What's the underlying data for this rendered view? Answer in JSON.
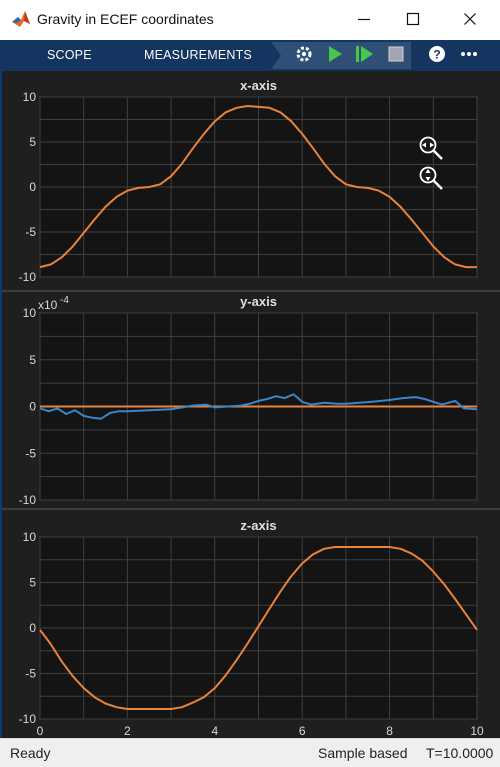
{
  "window": {
    "title": "Gravity in ECEF coordinates"
  },
  "toolstrip": {
    "tabs": [
      {
        "label": "SCOPE"
      },
      {
        "label": "MEASUREMENTS"
      }
    ]
  },
  "status": {
    "state": "Ready",
    "mode": "Sample based",
    "time": "T=10.0000"
  },
  "colors": {
    "titlebar": "#ffffff",
    "toolstrip": "#13355f",
    "scope_bg": "#1f1f1f",
    "axes_bg": "#141414",
    "grid": "#3f3f3f",
    "orange": "#e8833a",
    "blue": "#3b86c8"
  },
  "chart_data": [
    {
      "type": "line",
      "title": "x-axis",
      "xlim": [
        0,
        10
      ],
      "ylim": [
        -10,
        10
      ],
      "grid": true,
      "xticks": [],
      "yticks": [
        "10",
        "5",
        "0",
        "-5",
        "-10"
      ],
      "series": [
        {
          "color": "#e8833a",
          "x": [
            0,
            0.25,
            0.5,
            0.75,
            1.0,
            1.25,
            1.5,
            1.75,
            2.0,
            2.25,
            2.5,
            2.75,
            3.0,
            3.25,
            3.5,
            3.75,
            4.0,
            4.25,
            4.5,
            4.75,
            5.0,
            5.25,
            5.5,
            5.75,
            6.0,
            6.25,
            6.5,
            6.75,
            7.0,
            7.25,
            7.5,
            7.75,
            8.0,
            8.25,
            8.5,
            8.75,
            9.0,
            9.25,
            9.5,
            9.75,
            10.0
          ],
          "y": [
            -8.9,
            -8.6,
            -7.8,
            -6.6,
            -5.1,
            -3.6,
            -2.2,
            -1.1,
            -0.4,
            -0.1,
            0.0,
            0.3,
            1.2,
            2.6,
            4.3,
            5.9,
            7.3,
            8.3,
            8.8,
            9.0,
            8.9,
            8.8,
            8.3,
            7.3,
            5.9,
            4.3,
            2.6,
            1.2,
            0.3,
            0.0,
            -0.1,
            -0.4,
            -1.1,
            -2.2,
            -3.6,
            -5.1,
            -6.6,
            -7.8,
            -8.6,
            -8.9,
            -8.9
          ]
        }
      ]
    },
    {
      "type": "line",
      "title": "y-axis",
      "xlim": [
        0,
        10
      ],
      "ylim": [
        -10,
        10
      ],
      "grid": true,
      "xticks": [],
      "yticks": [
        "10",
        "5",
        "0",
        "-5",
        "-10"
      ],
      "exponent_label": "x10",
      "exponent": "-4",
      "series": [
        {
          "color": "#e8833a",
          "x": [
            0,
            10
          ],
          "y": [
            0,
            0
          ]
        },
        {
          "color": "#3b86c8",
          "x": [
            0,
            0.2,
            0.4,
            0.6,
            0.8,
            1.0,
            1.2,
            1.4,
            1.6,
            1.8,
            2.0,
            2.5,
            3.0,
            3.5,
            3.8,
            4.0,
            4.3,
            4.6,
            4.8,
            5.0,
            5.2,
            5.4,
            5.6,
            5.8,
            6.0,
            6.2,
            6.5,
            6.8,
            7.0,
            7.3,
            7.6,
            8.0,
            8.3,
            8.6,
            8.8,
            9.0,
            9.2,
            9.5,
            9.7,
            10.0
          ],
          "y": [
            -0.2,
            -0.5,
            -0.2,
            -0.8,
            -0.4,
            -1.0,
            -1.2,
            -1.3,
            -0.7,
            -0.5,
            -0.5,
            -0.4,
            -0.3,
            0.1,
            0.2,
            -0.1,
            0.0,
            0.1,
            0.3,
            0.6,
            0.8,
            1.1,
            0.9,
            1.3,
            0.5,
            0.2,
            0.4,
            0.3,
            0.3,
            0.4,
            0.5,
            0.7,
            0.9,
            1.0,
            0.8,
            0.5,
            0.2,
            0.6,
            -0.2,
            -0.3
          ]
        }
      ]
    },
    {
      "type": "line",
      "title": "z-axis",
      "xlim": [
        0,
        10
      ],
      "ylim": [
        -10,
        10
      ],
      "grid": true,
      "xticks": [
        "0",
        "2",
        "4",
        "6",
        "8",
        "10"
      ],
      "yticks": [
        "10",
        "5",
        "0",
        "-5",
        "-10"
      ],
      "series": [
        {
          "color": "#e8833a",
          "x": [
            0,
            0.25,
            0.5,
            0.75,
            1.0,
            1.25,
            1.5,
            1.75,
            2.0,
            2.5,
            3.0,
            3.25,
            3.5,
            3.75,
            4.0,
            4.25,
            4.5,
            4.75,
            5.0,
            5.25,
            5.5,
            5.75,
            6.0,
            6.25,
            6.5,
            6.75,
            7.0,
            7.5,
            8.0,
            8.25,
            8.5,
            8.75,
            9.0,
            9.25,
            9.5,
            9.75,
            10.0
          ],
          "y": [
            -0.2,
            -1.8,
            -3.7,
            -5.3,
            -6.6,
            -7.6,
            -8.3,
            -8.7,
            -8.9,
            -8.9,
            -8.9,
            -8.7,
            -8.2,
            -7.6,
            -6.6,
            -5.2,
            -3.5,
            -1.7,
            0.2,
            2.1,
            4.0,
            5.7,
            7.1,
            8.1,
            8.7,
            8.9,
            8.9,
            8.9,
            8.9,
            8.7,
            8.2,
            7.4,
            6.2,
            4.8,
            3.2,
            1.5,
            -0.2
          ]
        }
      ]
    }
  ]
}
